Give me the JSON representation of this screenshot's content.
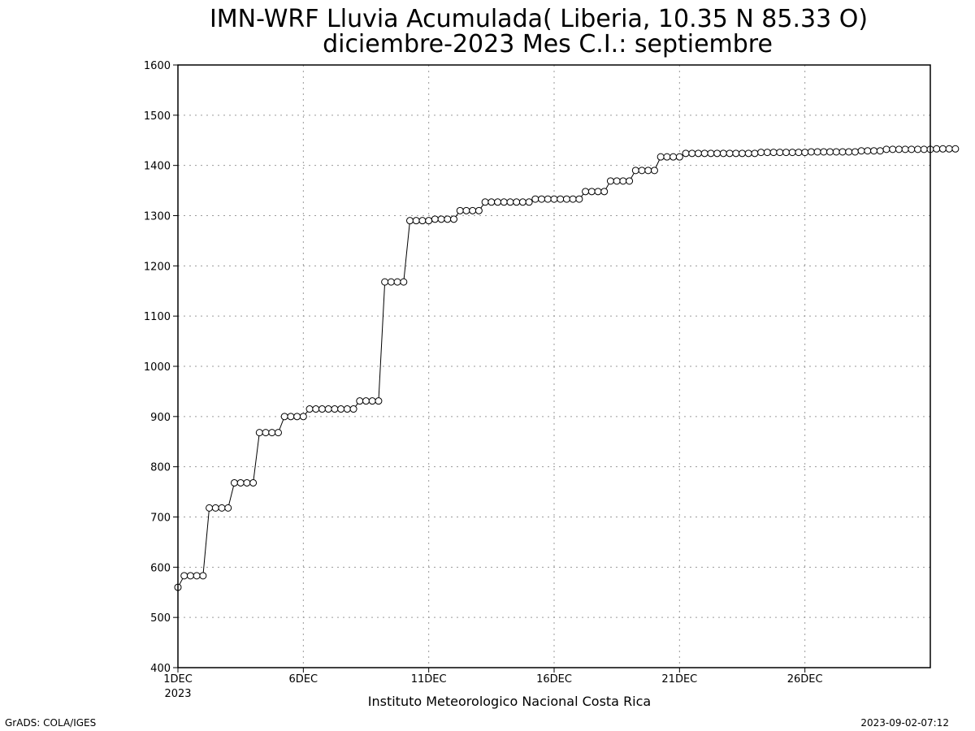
{
  "chart_data": {
    "type": "line",
    "title": "IMN-WRF  Lluvia Acumulada( Liberia, 10.35  N 85.33  O)",
    "subtitle": "diciembre-2023 Mes C.I.: septiembre",
    "xlabel": "Instituto Meteorologico Nacional Costa Rica",
    "ylabel": "",
    "ylim": [
      400,
      1600
    ],
    "xlim": [
      "2023-12-01 00:00",
      "2023-12-31 00:00"
    ],
    "y_ticks": [
      400,
      500,
      600,
      700,
      800,
      900,
      1000,
      1100,
      1200,
      1300,
      1400,
      1500,
      1600
    ],
    "x_ticks": [
      {
        "label": "1DEC",
        "sublabel": "2023",
        "date": "2023-12-01 00:00"
      },
      {
        "label": "6DEC",
        "sublabel": "",
        "date": "2023-12-06 00:00"
      },
      {
        "label": "11DEC",
        "sublabel": "",
        "date": "2023-12-11 00:00"
      },
      {
        "label": "16DEC",
        "sublabel": "",
        "date": "2023-12-16 00:00"
      },
      {
        "label": "21DEC",
        "sublabel": "",
        "date": "2023-12-21 00:00"
      },
      {
        "label": "26DEC",
        "sublabel": "",
        "date": "2023-12-26 00:00"
      }
    ],
    "grid": true,
    "x_interval_hours": 6,
    "x_start": "2023-12-01 00:00",
    "series": [
      {
        "values": [
          560,
          583,
          583,
          583,
          583,
          718,
          718,
          718,
          718,
          768,
          768,
          768,
          768,
          868,
          868,
          868,
          868,
          900,
          900,
          900,
          900,
          915,
          915,
          915,
          915,
          915,
          915,
          915,
          915,
          931,
          931,
          931,
          931,
          1168,
          1168,
          1168,
          1168,
          1290,
          1290,
          1290,
          1290,
          1293,
          1293,
          1293,
          1293,
          1310,
          1310,
          1310,
          1310,
          1327,
          1327,
          1327,
          1327,
          1327,
          1327,
          1327,
          1327,
          1333,
          1333,
          1333,
          1333,
          1333,
          1333,
          1333,
          1333,
          1348,
          1348,
          1348,
          1348,
          1369,
          1369,
          1369,
          1369,
          1390,
          1390,
          1390,
          1390,
          1417,
          1417,
          1417,
          1417,
          1424,
          1424,
          1424,
          1424,
          1424,
          1424,
          1424,
          1424,
          1424,
          1424,
          1424,
          1424,
          1426,
          1426,
          1426,
          1426,
          1426,
          1426,
          1426,
          1426,
          1427,
          1427,
          1427,
          1427,
          1427,
          1427,
          1427,
          1427,
          1429,
          1429,
          1429,
          1429,
          1432,
          1432,
          1432,
          1432,
          1432,
          1432,
          1432,
          1432,
          1433,
          1433,
          1433,
          1433
        ],
        "color": "#000000",
        "marker": "open-circle"
      }
    ]
  },
  "footer": {
    "left": "GrADS: COLA/IGES",
    "right": "2023-09-02-07:12"
  }
}
